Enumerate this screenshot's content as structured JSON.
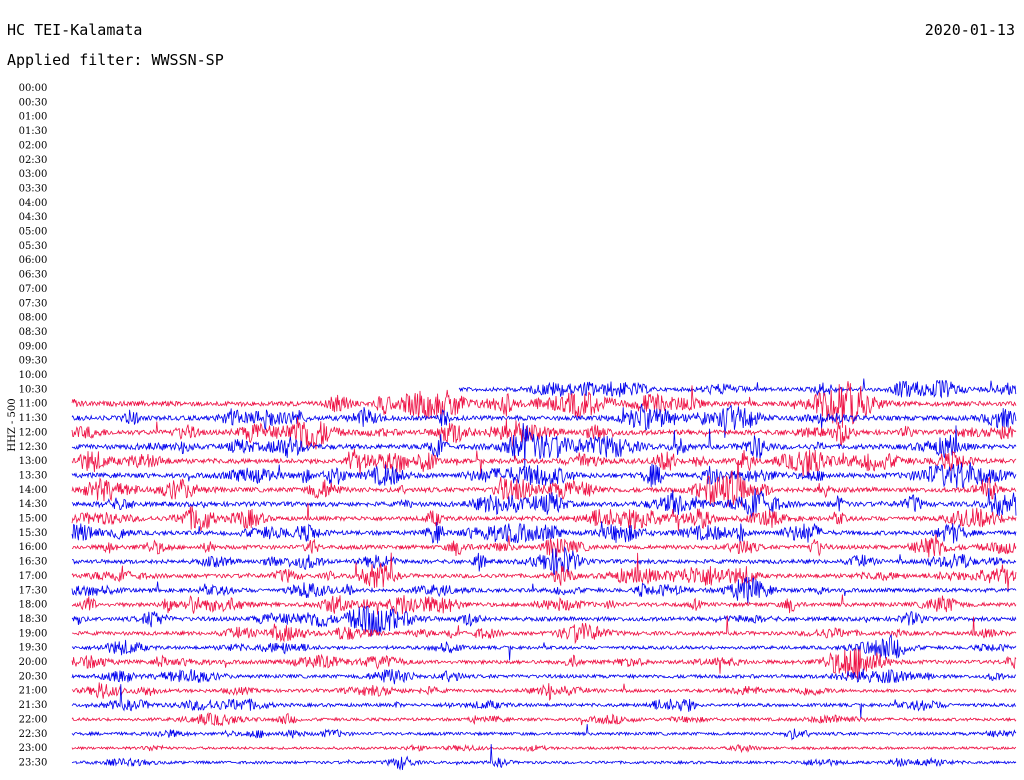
{
  "header": {
    "station": "HC TEI-Kalamata",
    "date": "2020-01-13",
    "filter": "Applied filter: WWSSN-SP"
  },
  "chart_data": {
    "type": "line",
    "channel_label": "HHZ - 500",
    "rows": [
      "00:00",
      "00:30",
      "01:00",
      "01:30",
      "02:00",
      "02:30",
      "03:00",
      "03:30",
      "04:00",
      "04:30",
      "05:00",
      "05:30",
      "06:00",
      "06:30",
      "07:00",
      "07:30",
      "08:00",
      "08:30",
      "09:00",
      "09:30",
      "10:00",
      "10:30",
      "11:00",
      "11:30",
      "12:00",
      "12:30",
      "13:00",
      "13:30",
      "14:00",
      "14:30",
      "15:00",
      "15:30",
      "16:00",
      "16:30",
      "17:00",
      "17:30",
      "18:00",
      "18:30",
      "19:00",
      "19:30",
      "20:00",
      "20:30",
      "21:00",
      "21:30",
      "22:00",
      "22:30",
      "23:00",
      "23:30"
    ],
    "row_minutes": 30,
    "first_data_row": "10:30",
    "first_data_start_fraction": 0.41,
    "colors": {
      "even": "#ee1144",
      "odd": "#0000ee"
    },
    "activity_level": {
      "10:30": 0.6,
      "11:00": 1.0,
      "11:30": 0.9,
      "12:00": 1.0,
      "12:30": 1.0,
      "13:00": 1.0,
      "13:30": 1.0,
      "14:00": 0.9,
      "14:30": 0.9,
      "15:00": 0.8,
      "15:30": 0.8,
      "16:00": 0.7,
      "16:30": 0.7,
      "17:00": 0.7,
      "17:30": 0.6,
      "18:00": 0.7,
      "18:30": 0.7,
      "19:00": 0.6,
      "19:30": 0.4,
      "20:00": 0.6,
      "20:30": 0.5,
      "21:00": 0.4,
      "21:30": 0.4,
      "22:00": 0.3,
      "22:30": 0.3,
      "23:00": 0.1,
      "23:30": 0.2
    }
  }
}
